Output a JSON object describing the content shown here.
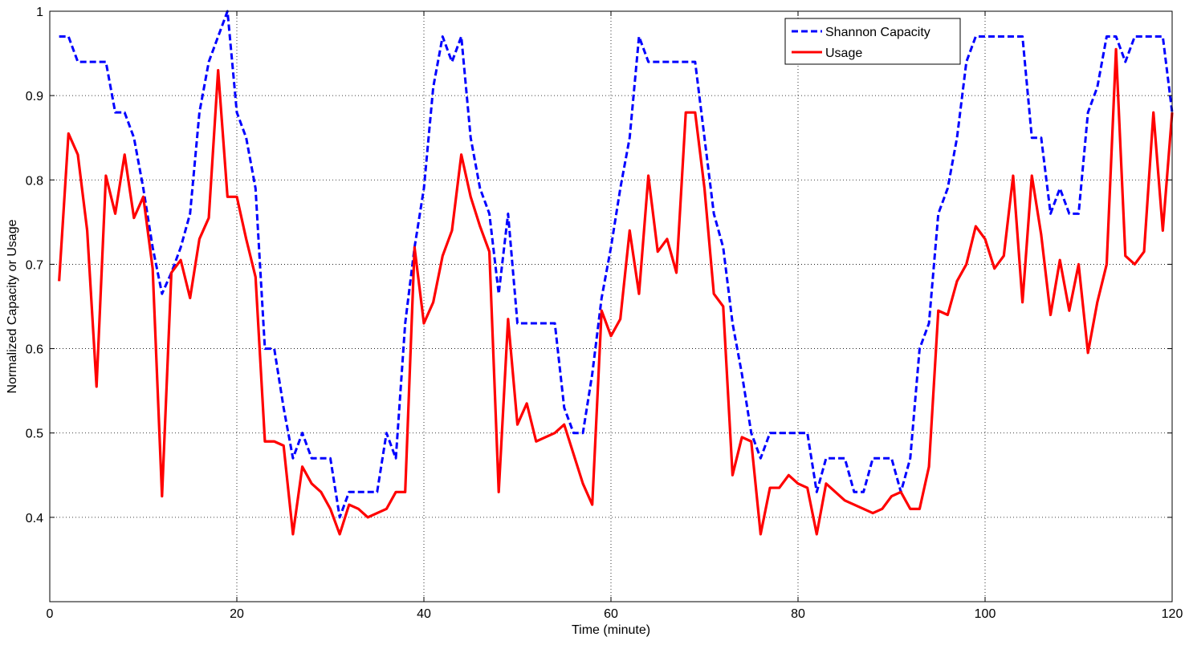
{
  "chart_data": {
    "type": "line",
    "xlabel": "Time (minute)",
    "ylabel": "Normalized Capacity or Usage",
    "xlim": [
      0,
      120
    ],
    "ylim": [
      0.3,
      1.0
    ],
    "xticks": [
      0,
      20,
      40,
      60,
      80,
      100,
      120
    ],
    "yticks": [
      0.4,
      0.5,
      0.6,
      0.7,
      0.8,
      0.9,
      1.0
    ],
    "ytick_labels": [
      "0.4",
      "0.5",
      "0.6",
      "0.7",
      "0.8",
      "0.9",
      "1"
    ],
    "grid": true,
    "legend_position": "top-right",
    "x": [
      1,
      2,
      3,
      4,
      5,
      6,
      7,
      8,
      9,
      10,
      11,
      12,
      13,
      14,
      15,
      16,
      17,
      18,
      19,
      20,
      21,
      22,
      23,
      24,
      25,
      26,
      27,
      28,
      29,
      30,
      31,
      32,
      33,
      34,
      35,
      36,
      37,
      38,
      39,
      40,
      41,
      42,
      43,
      44,
      45,
      46,
      47,
      48,
      49,
      50,
      51,
      52,
      53,
      54,
      55,
      56,
      57,
      58,
      59,
      60,
      61,
      62,
      63,
      64,
      65,
      66,
      67,
      68,
      69,
      70,
      71,
      72,
      73,
      74,
      75,
      76,
      77,
      78,
      79,
      80,
      81,
      82,
      83,
      84,
      85,
      86,
      87,
      88,
      89,
      90,
      91,
      92,
      93,
      94,
      95,
      96,
      97,
      98,
      99,
      100,
      101,
      102,
      103,
      104,
      105,
      106,
      107,
      108,
      109,
      110,
      111,
      112,
      113,
      114,
      115,
      116,
      117,
      118,
      119,
      120
    ],
    "series": [
      {
        "name": "Shannon Capacity",
        "color": "#0000ff",
        "style": "dashed",
        "values": [
          0.97,
          0.97,
          0.94,
          0.94,
          0.94,
          0.94,
          0.88,
          0.88,
          0.85,
          0.79,
          0.72,
          0.665,
          0.69,
          0.72,
          0.76,
          0.88,
          0.94,
          0.97,
          1.0,
          0.88,
          0.85,
          0.79,
          0.6,
          0.6,
          0.53,
          0.47,
          0.5,
          0.47,
          0.47,
          0.47,
          0.4,
          0.43,
          0.43,
          0.43,
          0.43,
          0.5,
          0.47,
          0.63,
          0.72,
          0.79,
          0.91,
          0.97,
          0.94,
          0.97,
          0.85,
          0.79,
          0.76,
          0.665,
          0.76,
          0.63,
          0.63,
          0.63,
          0.63,
          0.63,
          0.53,
          0.5,
          0.5,
          0.57,
          0.66,
          0.72,
          0.79,
          0.85,
          0.97,
          0.94,
          0.94,
          0.94,
          0.94,
          0.94,
          0.94,
          0.85,
          0.76,
          0.72,
          0.63,
          0.57,
          0.5,
          0.47,
          0.5,
          0.5,
          0.5,
          0.5,
          0.5,
          0.43,
          0.47,
          0.47,
          0.47,
          0.43,
          0.43,
          0.47,
          0.47,
          0.47,
          0.43,
          0.47,
          0.6,
          0.63,
          0.76,
          0.79,
          0.85,
          0.94,
          0.97,
          0.97,
          0.97,
          0.97,
          0.97,
          0.97,
          0.85,
          0.85,
          0.76,
          0.79,
          0.76,
          0.76,
          0.88,
          0.91,
          0.97,
          0.97,
          0.94,
          0.97,
          0.97,
          0.97,
          0.97,
          0.88
        ]
      },
      {
        "name": "Usage",
        "color": "#ff0000",
        "style": "solid",
        "values": [
          0.68,
          0.855,
          0.83,
          0.74,
          0.555,
          0.805,
          0.76,
          0.83,
          0.755,
          0.78,
          0.695,
          0.425,
          0.69,
          0.705,
          0.66,
          0.73,
          0.755,
          0.93,
          0.78,
          0.78,
          0.73,
          0.685,
          0.49,
          0.49,
          0.485,
          0.38,
          0.46,
          0.44,
          0.43,
          0.41,
          0.38,
          0.415,
          0.41,
          0.4,
          0.405,
          0.41,
          0.43,
          0.43,
          0.72,
          0.63,
          0.655,
          0.71,
          0.74,
          0.83,
          0.78,
          0.745,
          0.715,
          0.43,
          0.635,
          0.51,
          0.535,
          0.49,
          0.495,
          0.5,
          0.51,
          0.475,
          0.44,
          0.415,
          0.645,
          0.615,
          0.635,
          0.74,
          0.665,
          0.805,
          0.715,
          0.73,
          0.69,
          0.88,
          0.88,
          0.79,
          0.665,
          0.65,
          0.45,
          0.495,
          0.49,
          0.38,
          0.435,
          0.435,
          0.45,
          0.44,
          0.435,
          0.38,
          0.44,
          0.43,
          0.42,
          0.415,
          0.41,
          0.405,
          0.41,
          0.425,
          0.43,
          0.41,
          0.41,
          0.46,
          0.645,
          0.64,
          0.68,
          0.7,
          0.745,
          0.73,
          0.695,
          0.71,
          0.805,
          0.655,
          0.805,
          0.735,
          0.64,
          0.705,
          0.645,
          0.7,
          0.595,
          0.655,
          0.7,
          0.955,
          0.71,
          0.7,
          0.715,
          0.88,
          0.74,
          0.88
        ]
      }
    ]
  }
}
